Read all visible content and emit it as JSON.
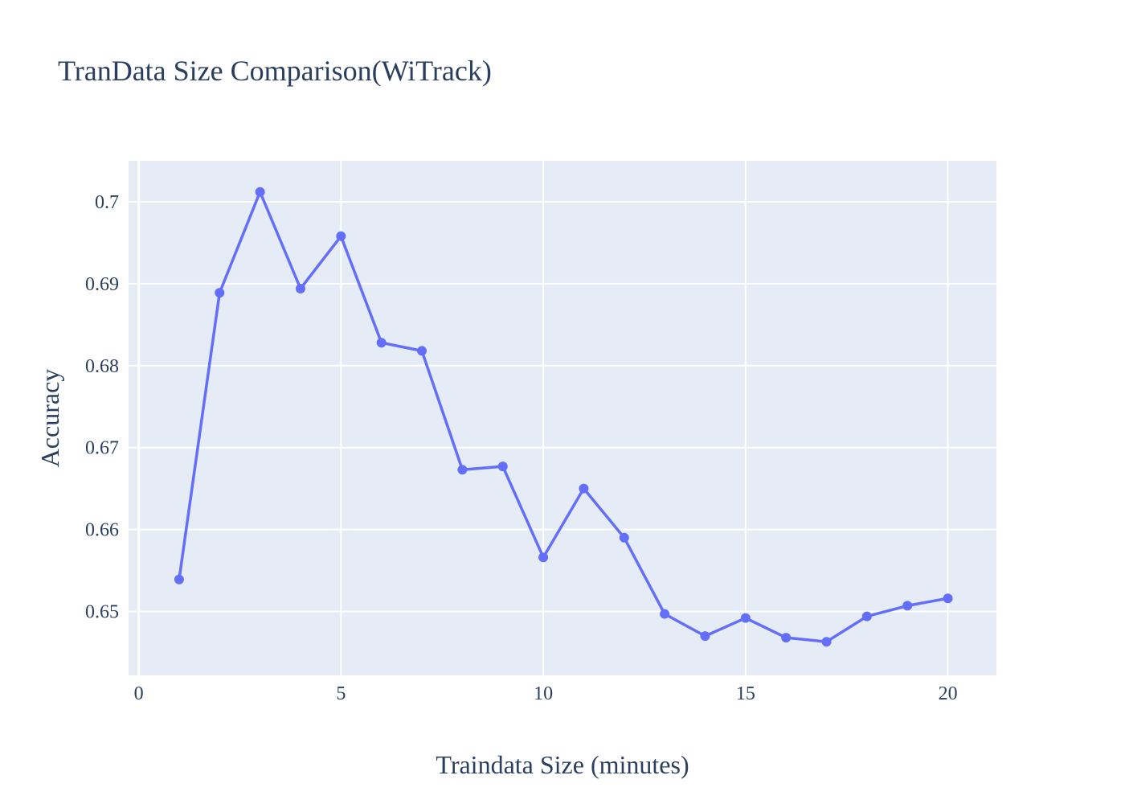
{
  "chart_data": {
    "type": "line",
    "title": "TranData Size Comparison(WiTrack)",
    "xlabel": "Traindata Size (minutes)",
    "ylabel": "Accuracy",
    "xlim": [
      -0.25,
      21.2
    ],
    "ylim": [
      0.6422,
      0.705
    ],
    "xticks": [
      0,
      5,
      10,
      15,
      20
    ],
    "xtick_labels": [
      "0",
      "5",
      "10",
      "15",
      "20"
    ],
    "yticks": [
      0.65,
      0.66,
      0.67,
      0.68,
      0.69,
      0.7
    ],
    "ytick_labels": [
      "0.65",
      "0.66",
      "0.67",
      "0.68",
      "0.69",
      "0.7"
    ],
    "grid": true,
    "legend": "none",
    "colors": {
      "plot_bg": "#e5ecf6",
      "grid": "#ffffff",
      "line": "#636efa",
      "text": "#2a3f5f"
    },
    "series": [
      {
        "x": [
          1,
          2,
          3,
          4,
          5,
          6,
          7,
          8,
          9,
          10,
          11,
          12,
          13,
          14,
          15,
          16,
          17,
          18,
          19,
          20
        ],
        "values": [
          0.6539,
          0.6889,
          0.7012,
          0.6894,
          0.6958,
          0.6828,
          0.6818,
          0.6673,
          0.6677,
          0.6566,
          0.665,
          0.659,
          0.6497,
          0.647,
          0.6492,
          0.6468,
          0.6463,
          0.6494,
          0.6507,
          0.6516
        ]
      }
    ]
  }
}
